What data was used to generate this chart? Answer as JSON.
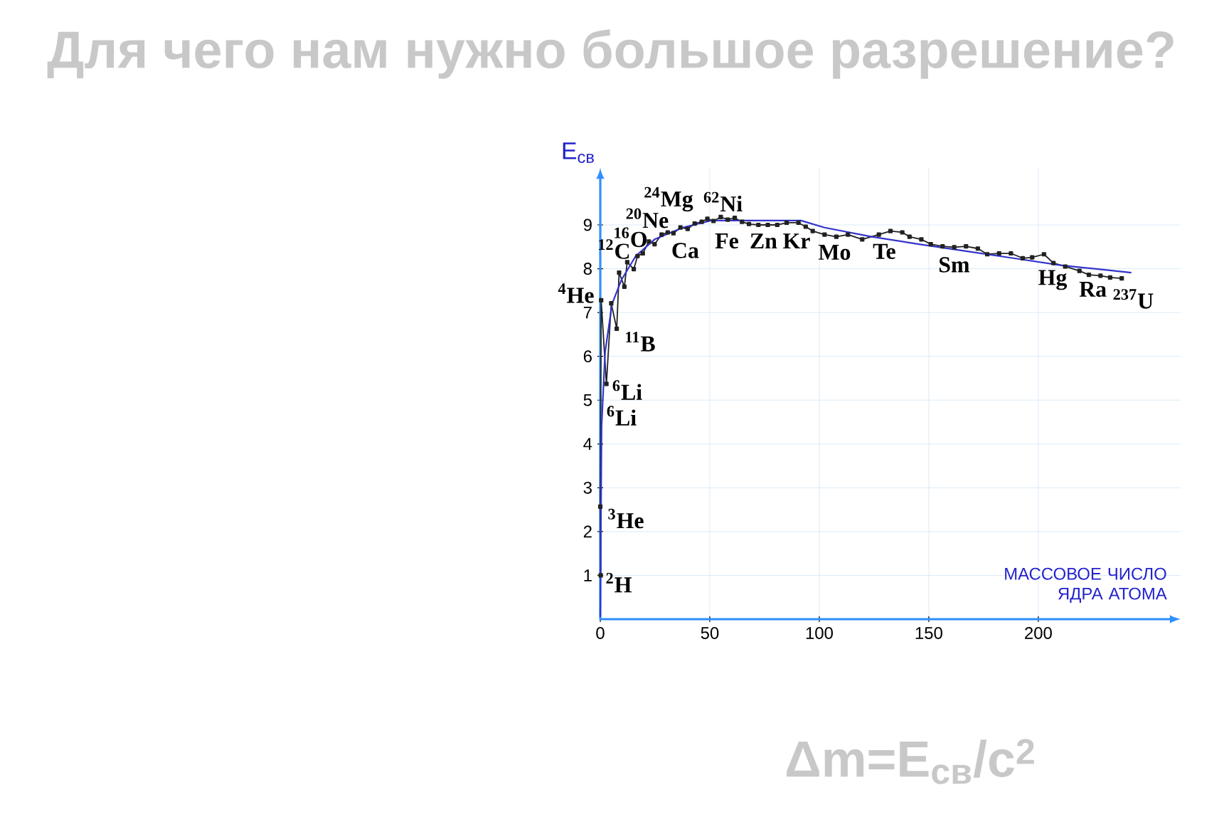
{
  "chart_data": {
    "type": "line",
    "title": "Для чего нам нужно большое разрешение?",
    "xlabel": "МАССОВОЕ ЧИСЛО ЯДРА АТОМА",
    "ylabel": "E$_{св}$",
    "xlim": [
      0,
      265
    ],
    "ylim": [
      0,
      10.3
    ],
    "xticks": [
      0,
      50,
      100,
      150,
      200
    ],
    "yticks": [
      1,
      2,
      3,
      4,
      5,
      6,
      7,
      8,
      9
    ],
    "grid": true,
    "series": [
      {
        "color": "#222222",
        "marker": "square",
        "x": [
          0.2,
          0,
          0.4,
          2.8,
          5.0,
          7.5,
          8.6,
          11.0,
          12.3,
          15.3,
          17,
          19.4,
          22.2,
          24.8,
          28,
          30.8,
          33.4,
          36.6,
          39.9,
          43.1,
          46.3,
          48.9,
          51.7,
          55,
          58.2,
          61.4,
          64.7,
          67.9,
          72.2,
          76.5,
          80.8,
          85.1,
          90.5,
          93.8,
          97,
          102.4,
          107.8,
          113.1,
          119.6,
          127.2,
          132.5,
          137.9,
          141.2,
          146.6,
          150.9,
          156.3,
          161.6,
          167,
          172.4,
          176.7,
          182.1,
          187.5,
          192.9,
          197.2,
          202.6,
          206.9,
          212.3,
          218.8,
          223.1,
          228.4,
          232.8,
          238.1
        ],
        "values": [
          1.0,
          2.57,
          7.28,
          5.37,
          7.21,
          6.63,
          7.91,
          7.59,
          8.15,
          7.99,
          8.29,
          8.35,
          8.62,
          8.56,
          8.78,
          8.83,
          8.81,
          8.94,
          8.91,
          9.03,
          9.07,
          9.14,
          9.09,
          9.18,
          9.12,
          9.16,
          9.07,
          9.02,
          9.0,
          9.0,
          9.0,
          9.05,
          9.05,
          8.96,
          8.86,
          8.78,
          8.73,
          8.78,
          8.67,
          8.78,
          8.86,
          8.83,
          8.73,
          8.67,
          8.56,
          8.51,
          8.49,
          8.51,
          8.46,
          8.33,
          8.35,
          8.35,
          8.24,
          8.26,
          8.33,
          8.13,
          8.05,
          7.95,
          7.86,
          7.84,
          7.8,
          7.78
        ]
      },
      {
        "color": "#3333cc",
        "marker": "none",
        "x": [
          0,
          0.6,
          2.2,
          5.4,
          9.7,
          16.2,
          24.8,
          37.7,
          50.6,
          63.6,
          91.6,
          102.4,
          123.9,
          145.5,
          167,
          188.6,
          210.1,
          227.4,
          242.5
        ],
        "values": [
          0.05,
          4.4,
          6.1,
          7.2,
          7.75,
          8.29,
          8.67,
          8.94,
          9.1,
          9.1,
          9.1,
          8.94,
          8.73,
          8.56,
          8.4,
          8.24,
          8.08,
          7.99,
          7.91
        ]
      }
    ],
    "annotations": [
      "$^{2}$H",
      "$^{3}$He",
      "$^{4}$He",
      "$^{6}$Li",
      "$^{6}$Li",
      "$^{11}$B",
      "$^{12}$C",
      "$^{16}$O",
      "$^{20}$Ne",
      "$^{24}$Mg",
      "$^{62}$Ni",
      "Ca",
      "Fe",
      "Zn",
      "Kr",
      "Mo",
      "Te",
      "Sm",
      "Hg",
      "Ra",
      "$^{237}$U",
      "Δm=E$_{св}$/c$^{2}$"
    ]
  }
}
